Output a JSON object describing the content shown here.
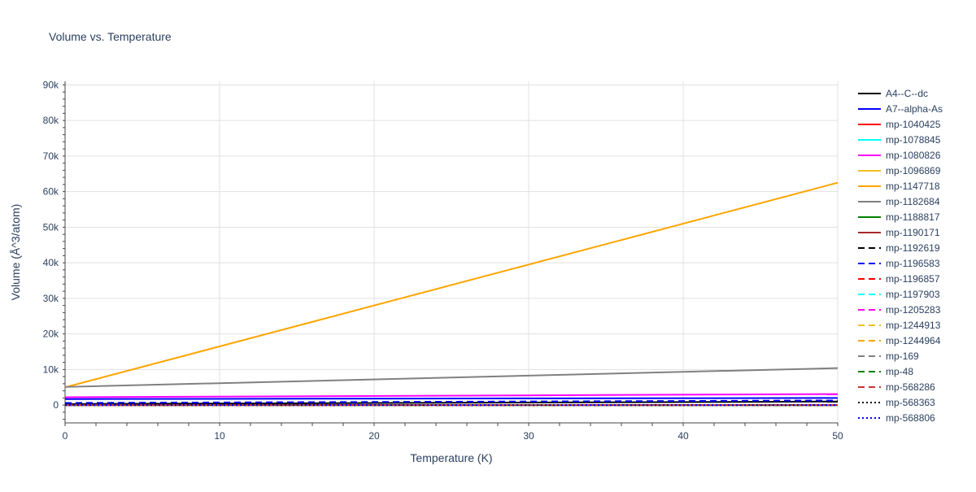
{
  "chart_data": {
    "type": "line",
    "title": "Volume vs. Temperature",
    "xlabel": "Temperature (K)",
    "ylabel": "Volume (Å^3/atom)",
    "xlim": [
      0,
      50
    ],
    "ylim": [
      -5000,
      91000
    ],
    "x_ticks": [
      0,
      10,
      20,
      30,
      40,
      50
    ],
    "x_tick_labels": [
      "0",
      "10",
      "20",
      "30",
      "40",
      "50"
    ],
    "y_ticks": [
      0,
      10000,
      20000,
      30000,
      40000,
      50000,
      60000,
      70000,
      80000,
      90000
    ],
    "y_tick_labels": [
      "0",
      "10k",
      "20k",
      "30k",
      "40k",
      "50k",
      "60k",
      "70k",
      "80k",
      "90k"
    ],
    "grid": true,
    "legend_position": "right",
    "x": [
      0,
      50
    ],
    "series": [
      {
        "name": "A4--C--dc",
        "values": [
          300,
          1000
        ],
        "color": "#000000",
        "dash": "solid"
      },
      {
        "name": "A7--alpha-As",
        "values": [
          1700,
          2000
        ],
        "color": "#0000ff",
        "dash": "solid"
      },
      {
        "name": "mp-1040425",
        "values": [
          0,
          0
        ],
        "color": "#ff0000",
        "dash": "solid"
      },
      {
        "name": "mp-1078845",
        "values": [
          0,
          0
        ],
        "color": "#00ffff",
        "dash": "solid"
      },
      {
        "name": "mp-1080826",
        "values": [
          2200,
          3100
        ],
        "color": "#ff00ff",
        "dash": "solid"
      },
      {
        "name": "mp-1096869",
        "values": [
          0,
          0
        ],
        "color": "#f0c020",
        "dash": "solid"
      },
      {
        "name": "mp-1147718",
        "values": [
          5000,
          62500
        ],
        "color": "#ffa500",
        "dash": "solid"
      },
      {
        "name": "mp-1182684",
        "values": [
          5100,
          10400
        ],
        "color": "#808080",
        "dash": "solid"
      },
      {
        "name": "mp-1188817",
        "values": [
          0,
          0
        ],
        "color": "#008000",
        "dash": "solid"
      },
      {
        "name": "mp-1190171",
        "values": [
          0,
          0
        ],
        "color": "#a52a2a",
        "dash": "solid"
      },
      {
        "name": "mp-1192619",
        "values": [
          0,
          0
        ],
        "color": "#000000",
        "dash": "dash"
      },
      {
        "name": "mp-1196583",
        "values": [
          600,
          1300
        ],
        "color": "#0000ff",
        "dash": "dash"
      },
      {
        "name": "mp-1196857",
        "values": [
          0,
          0
        ],
        "color": "#ff0000",
        "dash": "dash"
      },
      {
        "name": "mp-1197903",
        "values": [
          0,
          0
        ],
        "color": "#00ffff",
        "dash": "dash"
      },
      {
        "name": "mp-1205283",
        "values": [
          0,
          0
        ],
        "color": "#ff00ff",
        "dash": "dash"
      },
      {
        "name": "mp-1244913",
        "values": [
          0,
          0
        ],
        "color": "#f0c020",
        "dash": "dash"
      },
      {
        "name": "mp-1244964",
        "values": [
          0,
          0
        ],
        "color": "#ffa500",
        "dash": "dash"
      },
      {
        "name": "mp-169",
        "values": [
          0,
          0
        ],
        "color": "#808080",
        "dash": "dash"
      },
      {
        "name": "mp-48",
        "values": [
          0,
          0
        ],
        "color": "#008000",
        "dash": "dash"
      },
      {
        "name": "mp-568286",
        "values": [
          0,
          0
        ],
        "color": "#cc3333",
        "dash": "dash"
      },
      {
        "name": "mp-568363",
        "values": [
          0,
          0
        ],
        "color": "#000000",
        "dash": "dot"
      },
      {
        "name": "mp-568806",
        "values": [
          0,
          0
        ],
        "color": "#0000ff",
        "dash": "dot"
      }
    ]
  }
}
